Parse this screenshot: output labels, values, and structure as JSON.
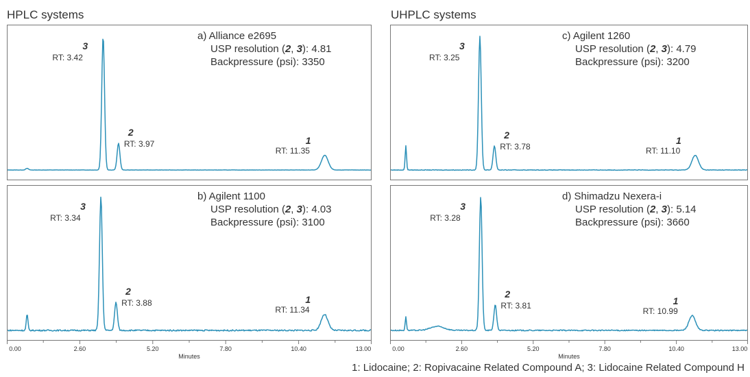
{
  "titles": {
    "left": "HPLC systems",
    "right": "UHPLC systems"
  },
  "legend": "1: Lidocaine; 2: Ropivacaine Related Compound A; 3: Lidocaine Related Compound H",
  "axis": {
    "xlabel": "Minutes",
    "ticks": [
      "0.00",
      "2.60",
      "5.20",
      "7.80",
      "10.40",
      "13.00"
    ]
  },
  "panels": [
    {
      "title": "a) Alliance e2695",
      "resolution": "USP resolution (2, 3): 4.81",
      "resolution_prefix": "USP resolution (",
      "resolution_suffix": "): 4.81",
      "backpressure": "Backpressure (psi): 3350",
      "peaks": [
        {
          "num": "3",
          "rt_label": "RT: 3.42"
        },
        {
          "num": "2",
          "rt_label": "RT: 3.97"
        },
        {
          "num": "1",
          "rt_label": "RT: 11.35"
        }
      ]
    },
    {
      "title": "b) Agilent 1100",
      "resolution": "USP resolution (2, 3): 4.03",
      "resolution_prefix": "USP resolution (",
      "resolution_suffix": "): 4.03",
      "backpressure": "Backpressure (psi): 3100",
      "peaks": [
        {
          "num": "3",
          "rt_label": "RT: 3.34"
        },
        {
          "num": "2",
          "rt_label": "RT: 3.88"
        },
        {
          "num": "1",
          "rt_label": "RT: 11.34"
        }
      ]
    },
    {
      "title": "c) Agilent 1260",
      "resolution": "USP resolution (2, 3): 4.79",
      "resolution_prefix": "USP resolution (",
      "resolution_suffix": "): 4.79",
      "backpressure": "Backpressure (psi): 3200",
      "peaks": [
        {
          "num": "3",
          "rt_label": "RT: 3.25"
        },
        {
          "num": "2",
          "rt_label": "RT: 3.78"
        },
        {
          "num": "1",
          "rt_label": "RT: 11.10"
        }
      ]
    },
    {
      "title": "d) Shimadzu Nexera-i",
      "resolution": "USP resolution (2, 3): 5.14",
      "resolution_prefix": "USP resolution (",
      "resolution_suffix": "): 5.14",
      "backpressure": "Backpressure (psi): 3660",
      "peaks": [
        {
          "num": "3",
          "rt_label": "RT: 3.28"
        },
        {
          "num": "2",
          "rt_label": "RT: 3.81"
        },
        {
          "num": "1",
          "rt_label": "RT: 10.99"
        }
      ]
    }
  ],
  "chart_data": [
    {
      "type": "line",
      "title": "a) Alliance e2695",
      "xlabel": "Minutes",
      "xlim": [
        0,
        13
      ],
      "ylim": [
        0,
        1.1
      ],
      "peaks": [
        {
          "rt": 3.42,
          "height": 1.0,
          "width": 0.05
        },
        {
          "rt": 3.97,
          "height": 0.2,
          "width": 0.05
        },
        {
          "rt": 11.35,
          "height": 0.11,
          "width": 0.12
        },
        {
          "rt": 0.7,
          "height": 0.012,
          "width": 0.05
        }
      ],
      "noise": 0.001
    },
    {
      "type": "line",
      "title": "b) Agilent 1100",
      "xlabel": "Minutes",
      "xlim": [
        0,
        13
      ],
      "ylim": [
        0,
        1.1
      ],
      "peaks": [
        {
          "rt": 3.34,
          "height": 1.0,
          "width": 0.05
        },
        {
          "rt": 3.88,
          "height": 0.21,
          "width": 0.05
        },
        {
          "rt": 11.34,
          "height": 0.12,
          "width": 0.12
        },
        {
          "rt": 0.7,
          "height": 0.12,
          "width": 0.03
        }
      ],
      "noise": 0.005
    },
    {
      "type": "line",
      "title": "c) Agilent 1260",
      "xlabel": "Minutes",
      "xlim": [
        0,
        13
      ],
      "ylim": [
        0,
        1.1
      ],
      "peaks": [
        {
          "rt": 3.25,
          "height": 1.0,
          "width": 0.05
        },
        {
          "rt": 3.78,
          "height": 0.18,
          "width": 0.05
        },
        {
          "rt": 11.1,
          "height": 0.11,
          "width": 0.12
        },
        {
          "rt": 0.55,
          "height": 0.18,
          "width": 0.025
        }
      ],
      "noise": 0.002
    },
    {
      "type": "line",
      "title": "d) Shimadzu Nexera-i",
      "xlabel": "Minutes",
      "xlim": [
        0,
        13
      ],
      "ylim": [
        0,
        1.1
      ],
      "peaks": [
        {
          "rt": 3.28,
          "height": 1.0,
          "width": 0.05
        },
        {
          "rt": 3.81,
          "height": 0.19,
          "width": 0.05
        },
        {
          "rt": 10.99,
          "height": 0.11,
          "width": 0.12
        },
        {
          "rt": 0.55,
          "height": 0.1,
          "width": 0.025
        },
        {
          "rt": 1.7,
          "height": 0.03,
          "width": 0.25
        }
      ],
      "noise": 0.004
    }
  ]
}
